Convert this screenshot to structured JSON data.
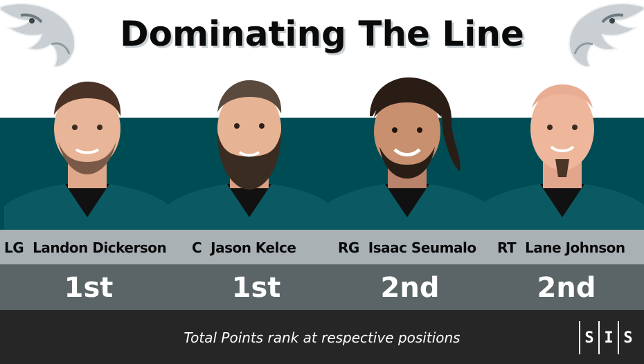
{
  "title": "Dominating The Line",
  "colors": {
    "teal": "#004c54",
    "gray_light": "#a9b1b5",
    "gray_dark": "#5b6466",
    "footer": "#262626"
  },
  "icons": {
    "logo": "eagle-head-icon"
  },
  "players": [
    {
      "position": "LG",
      "name": "Landon Dickerson",
      "rank": "1st"
    },
    {
      "position": "C",
      "name": "Jason Kelce",
      "rank": "1st"
    },
    {
      "position": "RG",
      "name": "Isaac Seumalo",
      "rank": "2nd"
    },
    {
      "position": "RT",
      "name": "Lane Johnson",
      "rank": "2nd"
    }
  ],
  "caption": "Total Points rank at respective positions",
  "brand": {
    "letters": [
      "S",
      "I",
      "S"
    ]
  }
}
